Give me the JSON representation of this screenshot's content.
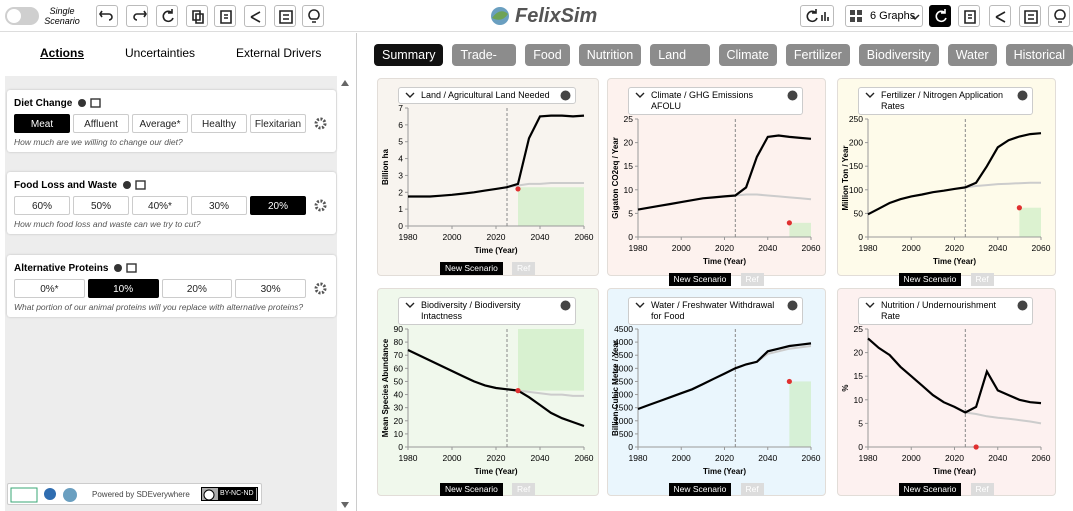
{
  "topbar": {
    "toggle_label": "Single Scenario",
    "app_name": "FelixSim",
    "graphs_select": "6 Graphs"
  },
  "left_panel": {
    "tabs": [
      "Actions",
      "Uncertainties",
      "External Drivers"
    ],
    "active_tab": 0,
    "controls": [
      {
        "title": "Diet Change",
        "options": [
          "Meat",
          "Affluent",
          "Average*",
          "Healthy",
          "Flexitarian"
        ],
        "selected": 0,
        "question": "How much are we willing to change our diet?"
      },
      {
        "title": "Food Loss and Waste",
        "options": [
          "60%",
          "50%",
          "40%*",
          "30%",
          "20%"
        ],
        "selected": 4,
        "question": "How much food loss and waste can we try to cut?"
      },
      {
        "title": "Alternative Proteins",
        "options": [
          "0%*",
          "10%",
          "20%",
          "30%"
        ],
        "selected": 1,
        "question": "What portion of our animal proteins will you replace with alternative proteins?"
      }
    ],
    "footer": {
      "powered_by": "Powered by SDEverywhere",
      "license": "BY-NC-ND"
    }
  },
  "category_tabs": {
    "items": [
      "Summary",
      "Trade-Offs",
      "Food",
      "Nutrition",
      "Land Use",
      "Climate",
      "Fertilizer",
      "Biodiversity",
      "Water",
      "Historical"
    ],
    "active": 0
  },
  "chart_data": [
    {
      "type": "line",
      "title": "Land / Agricultural Land Needed",
      "ylabel": "Billion ha",
      "xlabel": "Time (Year)",
      "background": "#f8f4ef",
      "x": [
        1980,
        1985,
        1990,
        1995,
        2000,
        2005,
        2010,
        2015,
        2020,
        2025,
        2030,
        2035,
        2040,
        2045,
        2050,
        2055,
        2060
      ],
      "xlim": [
        1980,
        2060
      ],
      "xticks": [
        1980,
        2000,
        2020,
        2040,
        2060
      ],
      "ylim": [
        0,
        7
      ],
      "yticks": [
        0,
        1,
        2,
        3,
        4,
        5,
        6,
        7
      ],
      "series": [
        {
          "name": "New Scenario",
          "color": "#000000",
          "values": [
            1.75,
            1.75,
            1.75,
            1.8,
            1.85,
            1.92,
            2.0,
            2.1,
            2.2,
            2.3,
            2.5,
            5.2,
            6.5,
            6.55,
            6.55,
            6.5,
            6.55
          ]
        },
        {
          "name": "Ref",
          "color": "#cccccc",
          "values": [
            null,
            null,
            null,
            null,
            null,
            null,
            null,
            null,
            null,
            2.3,
            2.4,
            2.5,
            2.5,
            2.55,
            2.55,
            2.55,
            2.55
          ]
        }
      ],
      "vline_x": 2025,
      "goal": {
        "x": 2030,
        "y": 2.2,
        "color": "#e03030"
      },
      "goal_band": {
        "x": [
          2030,
          2060
        ],
        "y": [
          0,
          2.3
        ]
      }
    },
    {
      "type": "line",
      "title": "Climate / GHG Emissions AFOLU",
      "ylabel": "Gigaton CO2eq / Year",
      "xlabel": "Time (Year)",
      "background": "#fdf2ee",
      "x": [
        1980,
        1985,
        1990,
        1995,
        2000,
        2005,
        2010,
        2015,
        2020,
        2025,
        2030,
        2035,
        2040,
        2045,
        2050,
        2055,
        2060
      ],
      "xlim": [
        1980,
        2060
      ],
      "xticks": [
        1980,
        2000,
        2020,
        2040,
        2060
      ],
      "ylim": [
        0,
        25
      ],
      "yticks": [
        0,
        5,
        10,
        15,
        20,
        25
      ],
      "series": [
        {
          "name": "New Scenario",
          "color": "#000000",
          "values": [
            5.8,
            6.2,
            6.6,
            7.0,
            7.4,
            7.8,
            8.2,
            8.4,
            8.6,
            8.8,
            10.5,
            17,
            21.2,
            21.5,
            21.2,
            21,
            20.8
          ]
        },
        {
          "name": "Ref",
          "color": "#cccccc",
          "values": [
            null,
            null,
            null,
            null,
            null,
            null,
            null,
            null,
            null,
            8.8,
            9.0,
            9.0,
            8.8,
            8.6,
            8.4,
            8.2,
            8.0
          ]
        }
      ],
      "vline_x": 2025,
      "goal": {
        "x": 2050,
        "y": 3.0,
        "color": "#e03030"
      },
      "goal_band": {
        "x": [
          2050,
          2060
        ],
        "y": [
          0,
          3.0
        ]
      }
    },
    {
      "type": "line",
      "title": "Fertilizer / Nitrogen Application Rates",
      "ylabel": "Million Ton / Year",
      "xlabel": "Time (Year)",
      "background": "#fefbea",
      "x": [
        1980,
        1985,
        1990,
        1995,
        2000,
        2005,
        2010,
        2015,
        2020,
        2025,
        2030,
        2035,
        2040,
        2045,
        2050,
        2055,
        2060
      ],
      "xlim": [
        1980,
        2060
      ],
      "xticks": [
        1980,
        2000,
        2020,
        2040,
        2060
      ],
      "ylim": [
        0,
        250
      ],
      "yticks": [
        0,
        50,
        100,
        150,
        200,
        250
      ],
      "series": [
        {
          "name": "New Scenario",
          "color": "#000000",
          "values": [
            48,
            60,
            72,
            80,
            86,
            90,
            95,
            98,
            102,
            105,
            115,
            150,
            190,
            205,
            213,
            218,
            220
          ]
        },
        {
          "name": "Ref",
          "color": "#cccccc",
          "values": [
            null,
            null,
            null,
            null,
            null,
            null,
            null,
            null,
            null,
            105,
            108,
            110,
            112,
            113,
            114,
            115,
            115
          ]
        }
      ],
      "vline_x": 2025,
      "goal": {
        "x": 2050,
        "y": 62,
        "color": "#e03030"
      },
      "goal_band": {
        "x": [
          2050,
          2060
        ],
        "y": [
          0,
          62
        ]
      }
    },
    {
      "type": "line",
      "title": "Biodiversity / Biodiversity Intactness",
      "ylabel": "Mean Species Abundance",
      "xlabel": "Time (Year)",
      "background": "#f0f8ec",
      "x": [
        1980,
        1985,
        1990,
        1995,
        2000,
        2005,
        2010,
        2015,
        2020,
        2025,
        2030,
        2035,
        2040,
        2045,
        2050,
        2055,
        2060
      ],
      "xlim": [
        1980,
        2060
      ],
      "xticks": [
        1980,
        2000,
        2020,
        2040,
        2060
      ],
      "ylim": [
        0,
        90
      ],
      "yticks": [
        0,
        10,
        20,
        30,
        40,
        50,
        60,
        70,
        80,
        90
      ],
      "series": [
        {
          "name": "New Scenario",
          "color": "#000000",
          "values": [
            74,
            70,
            66,
            62,
            58,
            54,
            50,
            47,
            45,
            44,
            43,
            38,
            32,
            26,
            22,
            19,
            16
          ]
        },
        {
          "name": "Ref",
          "color": "#cccccc",
          "values": [
            null,
            null,
            null,
            null,
            null,
            null,
            null,
            null,
            null,
            44,
            43,
            42,
            41,
            40,
            40,
            39,
            39
          ]
        }
      ],
      "vline_x": 2025,
      "goal": {
        "x": 2030,
        "y": 43,
        "color": "#e03030"
      },
      "goal_band": {
        "x": [
          2030,
          2060
        ],
        "y": [
          43,
          90
        ]
      }
    },
    {
      "type": "line",
      "title": "Water / Freshwater Withdrawal for Food",
      "ylabel": "Billion Cubic Metre / Year",
      "xlabel": "Time (Year)",
      "background": "#eaf6fd",
      "x": [
        1980,
        1985,
        1990,
        1995,
        2000,
        2005,
        2010,
        2015,
        2020,
        2025,
        2030,
        2035,
        2040,
        2045,
        2050,
        2055,
        2060
      ],
      "xlim": [
        1980,
        2060
      ],
      "xticks": [
        1980,
        2000,
        2020,
        2040,
        2060
      ],
      "ylim": [
        0,
        4500
      ],
      "yticks": [
        0,
        500,
        1000,
        1500,
        2000,
        2500,
        3000,
        3500,
        4000,
        4500
      ],
      "series": [
        {
          "name": "New Scenario",
          "color": "#000000",
          "values": [
            1450,
            1600,
            1750,
            1900,
            2050,
            2200,
            2400,
            2600,
            2800,
            3000,
            3150,
            3250,
            3650,
            3750,
            3850,
            3900,
            3950
          ]
        },
        {
          "name": "Ref",
          "color": "#cccccc",
          "values": [
            null,
            null,
            null,
            null,
            null,
            null,
            null,
            null,
            null,
            3000,
            3150,
            3250,
            3550,
            3650,
            3750,
            3800,
            3850
          ]
        }
      ],
      "vline_x": 2025,
      "goal": {
        "x": 2050,
        "y": 2500,
        "color": "#e03030"
      },
      "goal_band": {
        "x": [
          2050,
          2060
        ],
        "y": [
          0,
          2500
        ]
      }
    },
    {
      "type": "line",
      "title": "Nutrition / Undernourishment Rate",
      "ylabel": "%",
      "xlabel": "Time (Year)",
      "background": "#fdf1f0",
      "x": [
        1980,
        1985,
        1990,
        1995,
        2000,
        2005,
        2010,
        2015,
        2020,
        2025,
        2030,
        2035,
        2040,
        2045,
        2050,
        2055,
        2060
      ],
      "xlim": [
        1980,
        2060
      ],
      "xticks": [
        1980,
        2000,
        2020,
        2040,
        2060
      ],
      "ylim": [
        0,
        25
      ],
      "yticks": [
        0,
        5,
        10,
        15,
        20,
        25
      ],
      "series": [
        {
          "name": "New Scenario",
          "color": "#000000",
          "values": [
            23,
            21,
            19.5,
            17,
            15,
            13,
            11,
            9.5,
            8.5,
            7.3,
            8.5,
            16,
            12,
            11,
            10,
            9.5,
            9.3
          ]
        },
        {
          "name": "Ref",
          "color": "#cccccc",
          "values": [
            null,
            null,
            null,
            null,
            null,
            null,
            null,
            null,
            null,
            7.3,
            7.0,
            6.5,
            6.2,
            6.0,
            5.7,
            5.4,
            5.0
          ]
        }
      ],
      "vline_x": 2025,
      "goal": {
        "x": 2030,
        "y": 0,
        "color": "#e03030"
      }
    }
  ]
}
